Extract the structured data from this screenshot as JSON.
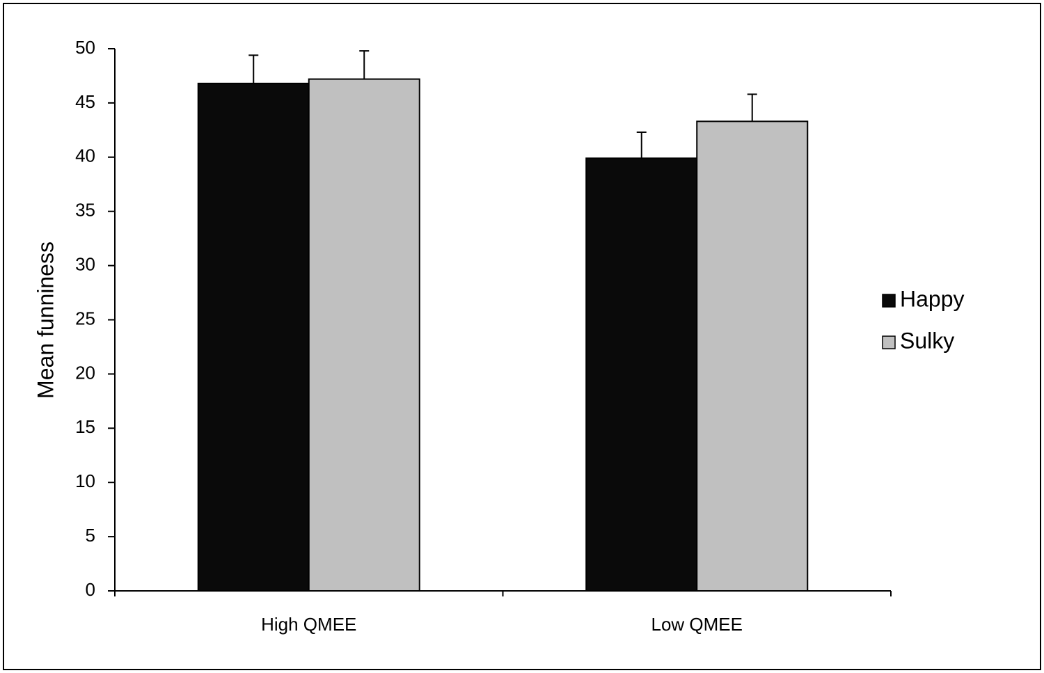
{
  "chart_data": {
    "type": "bar",
    "y_label": "Mean funniness",
    "categories": [
      "High QMEE",
      "Low QMEE"
    ],
    "series": [
      {
        "name": "Happy",
        "color": "#0a0a0a",
        "values": [
          46.8,
          39.9
        ],
        "errors": [
          2.6,
          2.4
        ]
      },
      {
        "name": "Sulky",
        "color": "#c0c0c0",
        "values": [
          47.2,
          43.3
        ],
        "errors": [
          2.6,
          2.5
        ]
      }
    ],
    "ylim": [
      0,
      50
    ],
    "yticks": [
      0,
      5,
      10,
      15,
      20,
      25,
      30,
      35,
      40,
      45,
      50
    ],
    "legend": "right"
  }
}
